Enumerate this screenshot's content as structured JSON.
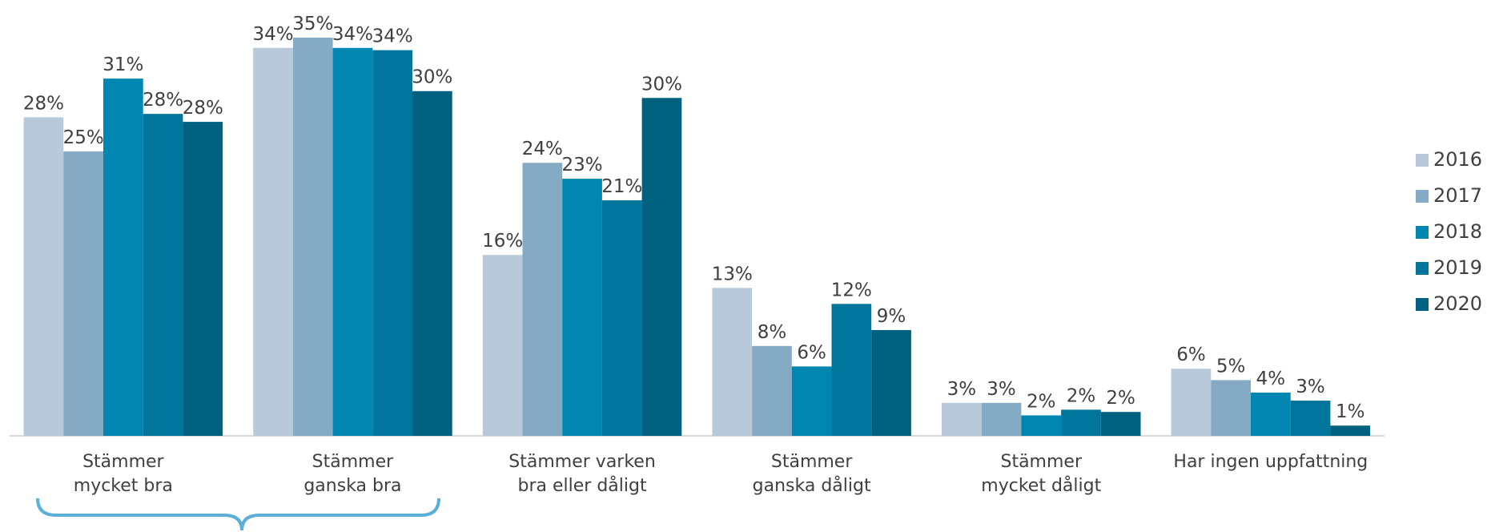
{
  "chart_data": {
    "type": "bar",
    "categories": [
      "Stämmer\nmycket bra",
      "Stämmer\nganska bra",
      "Stämmer varken\nbra eller dåligt",
      "Stämmer\nganska dåligt",
      "Stämmer\nmycket dåligt",
      "Har ingen uppfattning"
    ],
    "series": [
      {
        "name": "2016",
        "color": "#b8cad9",
        "values": [
          28.0,
          34.1,
          15.9,
          13.0,
          2.9,
          5.9
        ],
        "value_labels": [
          "28%",
          "34%",
          "16%",
          "13%",
          "3%",
          "6%"
        ]
      },
      {
        "name": "2017",
        "color": "#84aac4",
        "values": [
          25.0,
          35.0,
          24.0,
          7.9,
          2.9,
          4.9
        ],
        "value_labels": [
          "25%",
          "35%",
          "24%",
          "8%",
          "3%",
          "5%"
        ]
      },
      {
        "name": "2018",
        "color": "#0086b1",
        "values": [
          31.4,
          34.1,
          22.6,
          6.1,
          1.8,
          3.8
        ],
        "value_labels": [
          "31%",
          "34%",
          "23%",
          "6%",
          "2%",
          "4%"
        ]
      },
      {
        "name": "2019",
        "color": "#00759b",
        "values": [
          28.3,
          33.9,
          20.7,
          11.6,
          2.3,
          3.1
        ],
        "value_labels": [
          "28%",
          "34%",
          "21%",
          "12%",
          "2%",
          "3%"
        ]
      },
      {
        "name": "2020",
        "color": "#00607f",
        "values": [
          27.6,
          30.3,
          29.7,
          9.3,
          2.1,
          0.9
        ],
        "value_labels": [
          "28%",
          "30%",
          "30%",
          "9%",
          "2%",
          "1%"
        ]
      }
    ],
    "legend": "right"
  }
}
